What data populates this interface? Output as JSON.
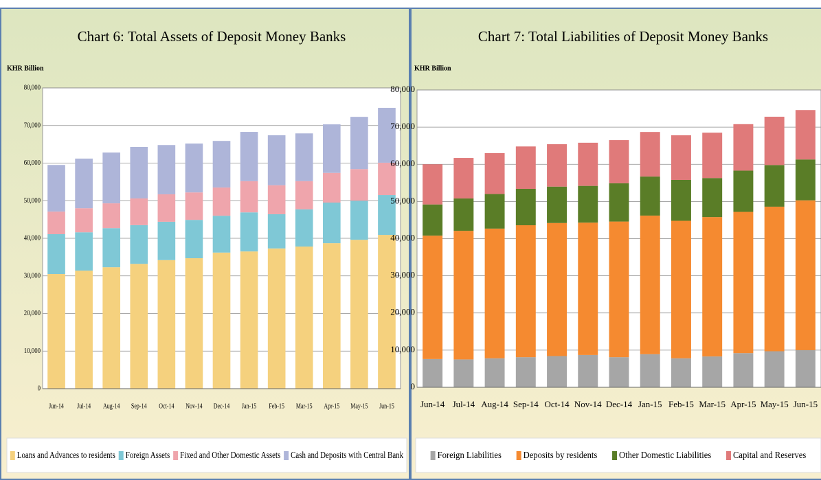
{
  "chart_data": [
    {
      "type": "stacked_bar",
      "title": "Chart 6: Total Assets of Deposit Money Banks",
      "y_label": "KHR Billion",
      "categories": [
        "Jun-14",
        "Jul-14",
        "Aug-14",
        "Sep-14",
        "Oct-14",
        "Nov-14",
        "Dec-14",
        "Jan-15",
        "Feb-15",
        "Mar-15",
        "Apr-15",
        "May-15",
        "Jun-15"
      ],
      "series": [
        {
          "name": "Loans and Advances to residents",
          "color": "#f5d17e",
          "values": [
            30500,
            31400,
            32300,
            33200,
            34200,
            34700,
            36200,
            36500,
            37300,
            37800,
            38700,
            39600,
            40900
          ]
        },
        {
          "name": "Foreign Assets",
          "color": "#7fc8d6",
          "values": [
            10600,
            10200,
            10400,
            10300,
            10200,
            10200,
            9800,
            10400,
            9100,
            9900,
            10800,
            10400,
            10600
          ]
        },
        {
          "name": "Fixed and Other Domestic Assets",
          "color": "#efa5ac",
          "values": [
            6000,
            6400,
            6600,
            7100,
            7300,
            7300,
            7500,
            8300,
            7700,
            7500,
            7900,
            8400,
            8600
          ]
        },
        {
          "name": "Cash and Deposits with Central Bank",
          "color": "#aeb5d9",
          "values": [
            12400,
            13200,
            13500,
            13700,
            13100,
            13000,
            12400,
            13100,
            13300,
            12700,
            12900,
            13900,
            14600
          ]
        }
      ],
      "ylim": [
        0,
        80000
      ],
      "yticks": [
        0,
        {
          "value": 10000,
          "label": "10,000"
        },
        {
          "value": 20000,
          "label": "20,000"
        },
        {
          "value": 30000,
          "label": "30,000"
        },
        {
          "value": 40000,
          "label": "40,000"
        },
        {
          "value": 50000,
          "label": "50,000"
        },
        {
          "value": 60000,
          "label": "60,000"
        },
        {
          "value": 70000,
          "label": "70,000"
        },
        {
          "value": 80000,
          "label": "80,000"
        }
      ],
      "grid": true,
      "legend": "bottom"
    },
    {
      "type": "stacked_bar",
      "title": "Chart 7: Total Liabilities of Deposit Money Banks",
      "y_label": "KHR Billion",
      "categories": [
        "Jun-14",
        "Jul-14",
        "Aug-14",
        "Sep-14",
        "Oct-14",
        "Nov-14",
        "Dec-14",
        "Jan-15",
        "Feb-15",
        "Mar-15",
        "Apr-15",
        "May-15",
        "Jun-15"
      ],
      "series": [
        {
          "name": "Foreign Liabilities",
          "color": "#a6a6a6",
          "values": [
            7600,
            7500,
            7800,
            8100,
            8400,
            8700,
            8100,
            8900,
            7800,
            8300,
            9200,
            9700,
            10000
          ]
        },
        {
          "name": "Deposits by residents",
          "color": "#f58a30",
          "values": [
            33200,
            34600,
            34900,
            35500,
            35800,
            35600,
            36500,
            37300,
            37000,
            37500,
            38000,
            38900,
            40300
          ]
        },
        {
          "name": "Other Domestic Liabilities",
          "color": "#5a7d27",
          "values": [
            8400,
            8700,
            9300,
            9800,
            9800,
            9900,
            10300,
            10500,
            11000,
            10500,
            11100,
            11200,
            11000
          ]
        },
        {
          "name": "Capital and Reserves",
          "color": "#e07a7a",
          "values": [
            10800,
            10900,
            11000,
            11400,
            11400,
            11600,
            11600,
            12000,
            12000,
            12200,
            12500,
            13000,
            13300
          ]
        }
      ],
      "ylim": [
        0,
        80000
      ],
      "yticks": [
        0,
        {
          "value": 10000,
          "label": "10,000"
        },
        {
          "value": 20000,
          "label": "20,000"
        },
        {
          "value": 30000,
          "label": "30,000"
        },
        {
          "value": 40000,
          "label": "40,000"
        },
        {
          "value": 50000,
          "label": "50,000"
        },
        {
          "value": 60000,
          "label": "60,000"
        },
        {
          "value": 70000,
          "label": "70,000"
        },
        {
          "value": 80000,
          "label": "80,000"
        }
      ],
      "grid": true,
      "legend": "bottom"
    }
  ]
}
